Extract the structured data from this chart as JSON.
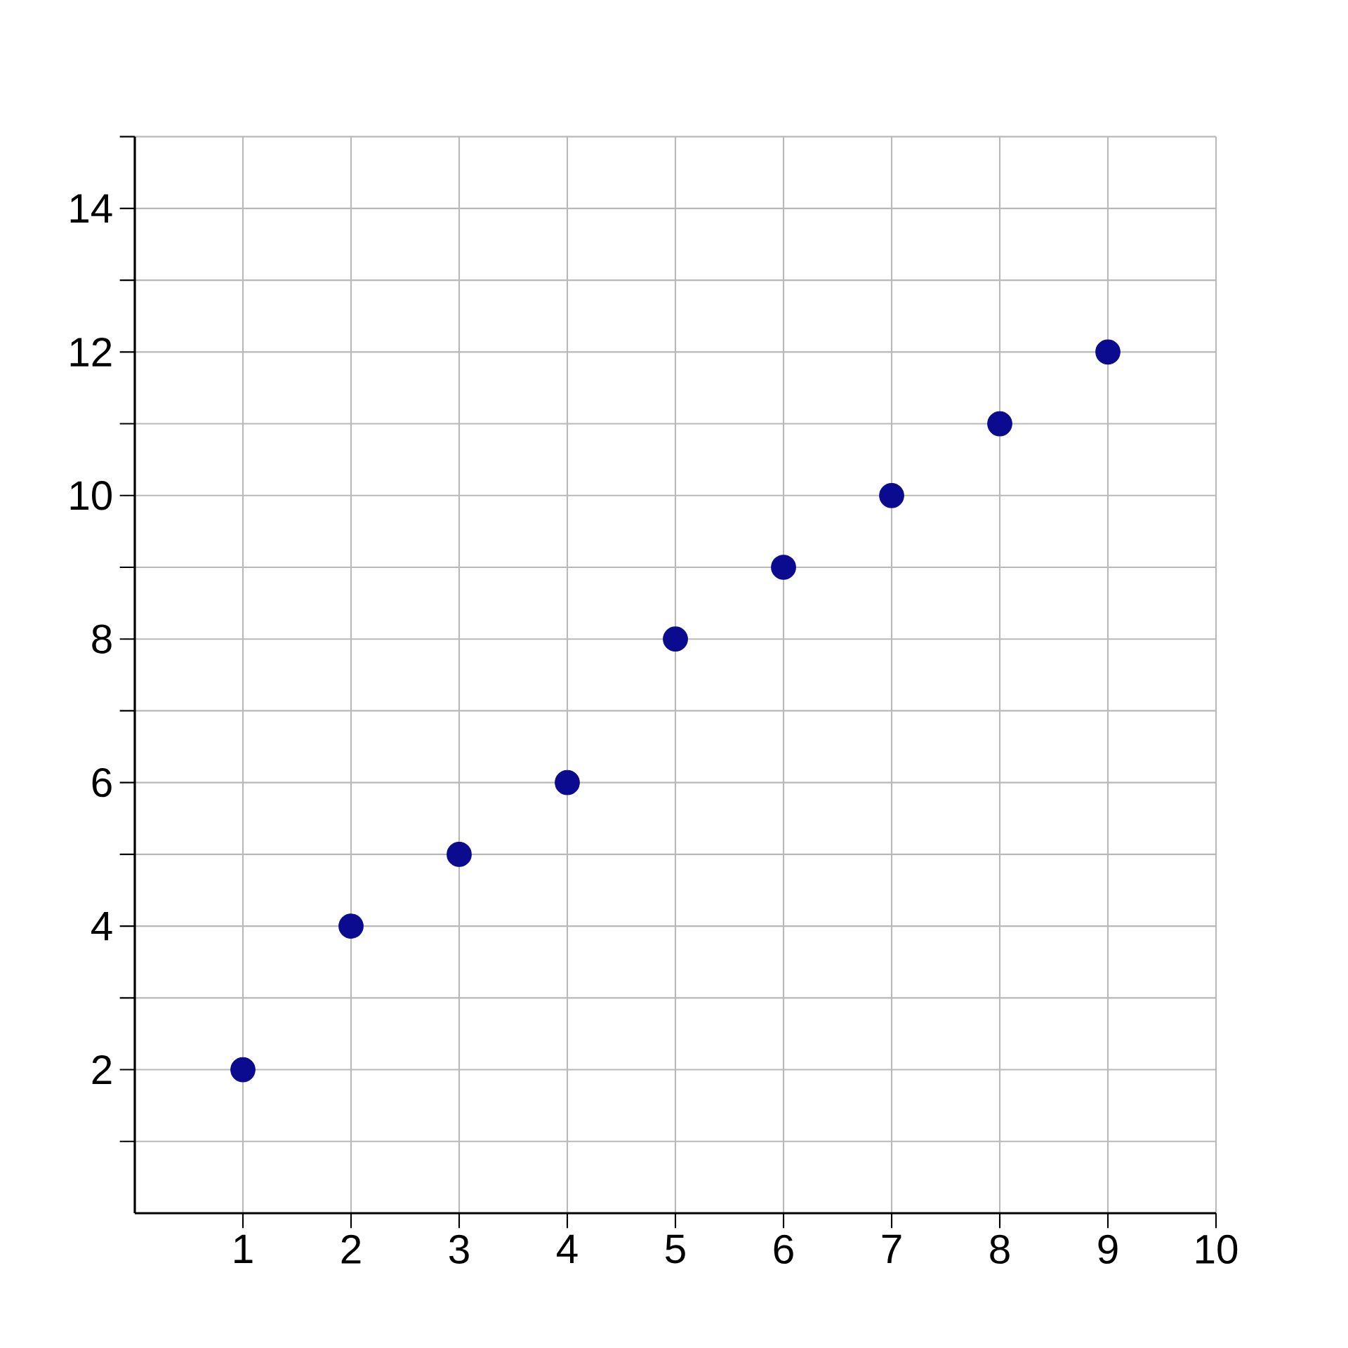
{
  "chart_data": {
    "type": "scatter",
    "x": [
      1,
      2,
      3,
      4,
      5,
      6,
      7,
      8,
      9
    ],
    "values": [
      2,
      4,
      5,
      6,
      8,
      9,
      10,
      11,
      12
    ],
    "color": "#0b0b8f",
    "marker": "circle",
    "grid": true,
    "xlim": [
      0,
      10
    ],
    "ylim": [
      0,
      15
    ],
    "xticks": [
      1,
      2,
      3,
      4,
      5,
      6,
      7,
      8,
      9,
      10
    ],
    "yticks": [
      {
        "value": 1,
        "label": null
      },
      2,
      {
        "value": 3,
        "label": null
      },
      4,
      {
        "value": 5,
        "label": null
      },
      6,
      {
        "value": 7,
        "label": null
      },
      8,
      {
        "value": 9,
        "label": null
      },
      10,
      {
        "value": 11,
        "label": null
      },
      12,
      {
        "value": 13,
        "label": null
      },
      14,
      {
        "value": 15,
        "label": null
      }
    ]
  }
}
